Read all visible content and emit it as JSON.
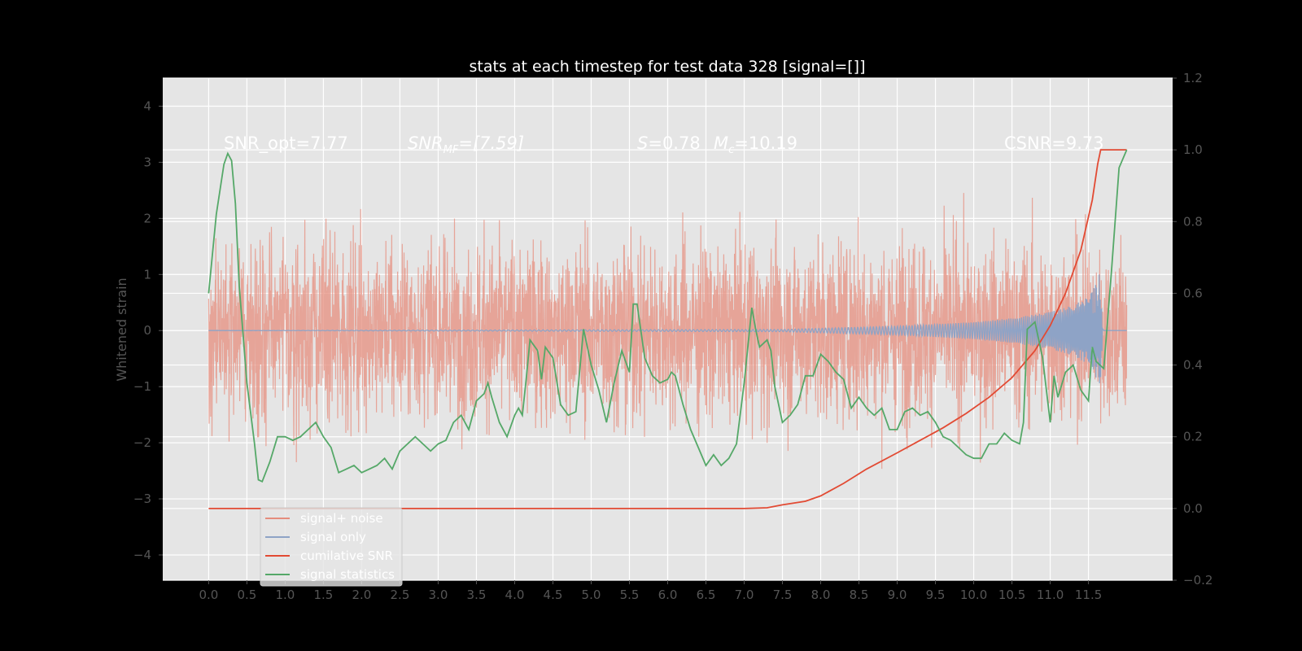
{
  "chart_data": {
    "type": "line",
    "title": "stats at each timestep for test data 328 [signal=[]]",
    "ylabel": "Whitened strain",
    "xlabel": "",
    "xlim": [
      -0.6,
      12.6
    ],
    "ylim": [
      -4.45,
      4.5
    ],
    "y2lim": [
      -0.2,
      1.2
    ],
    "x_ticks": [
      "0.0",
      "0.5",
      "1.0",
      "1.5",
      "2.0",
      "2.5",
      "3.0",
      "3.5",
      "4.0",
      "4.5",
      "5.0",
      "5.5",
      "6.0",
      "6.5",
      "7.0",
      "7.5",
      "8.0",
      "8.5",
      "9.0",
      "9.5",
      "10.0",
      "10.5",
      "11.0",
      "11.5"
    ],
    "y_ticks": [
      "4",
      "3",
      "2",
      "1",
      "0",
      "−1",
      "−2",
      "−3",
      "−4"
    ],
    "y2_ticks": [
      "1.2",
      "1.0",
      "0.8",
      "0.6",
      "0.4",
      "0.2",
      "0.0",
      "−0.2"
    ],
    "grid": true,
    "legend_position": "lower-left",
    "annotations": {
      "snr_opt": "SNR_opt=7.77",
      "snr_mf_sym": "SNR",
      "snr_mf_sub": "MF",
      "snr_mf_val": "=[7.59]",
      "s_sym": "S",
      "s_val": "=0.78",
      "mc_sym": "M",
      "mc_sub": "c",
      "mc_val": "=10.19",
      "csnr": "CSNR=9.73"
    },
    "series": [
      {
        "name": "signal+ noise",
        "color": "#e58d7d",
        "axis": "left",
        "kind": "noise",
        "amplitude": 3.2,
        "x_range": [
          0,
          12
        ]
      },
      {
        "name": "signal only",
        "color": "#8ea3c6",
        "axis": "left",
        "kind": "chirp",
        "envelope": {
          "x": [
            0,
            7.5,
            9.0,
            10.0,
            10.5,
            11.0,
            11.3,
            11.5,
            11.6,
            11.65,
            11.7,
            12.0
          ],
          "y": [
            0,
            0.02,
            0.08,
            0.15,
            0.22,
            0.33,
            0.45,
            0.6,
            0.85,
            1.05,
            0,
            0
          ]
        }
      },
      {
        "name": "cumilative SNR",
        "color": "#e24a33",
        "axis": "right",
        "x": [
          0,
          7.0,
          7.3,
          7.5,
          7.8,
          8.0,
          8.3,
          8.6,
          9.0,
          9.3,
          9.6,
          9.9,
          10.2,
          10.5,
          10.8,
          11.0,
          11.2,
          11.4,
          11.55,
          11.62,
          11.66,
          12.0
        ],
        "y": [
          0,
          0,
          0.002,
          0.01,
          0.02,
          0.035,
          0.07,
          0.11,
          0.155,
          0.19,
          0.225,
          0.265,
          0.31,
          0.365,
          0.44,
          0.51,
          0.6,
          0.72,
          0.86,
          0.96,
          1.0,
          1.0
        ]
      },
      {
        "name": "signal statistics",
        "color": "#55a868",
        "axis": "right",
        "x": [
          0,
          0.1,
          0.2,
          0.25,
          0.3,
          0.35,
          0.4,
          0.5,
          0.6,
          0.65,
          0.7,
          0.8,
          0.9,
          1.0,
          1.1,
          1.2,
          1.3,
          1.4,
          1.5,
          1.6,
          1.7,
          1.8,
          1.9,
          2.0,
          2.1,
          2.2,
          2.3,
          2.4,
          2.5,
          2.6,
          2.7,
          2.8,
          2.9,
          3.0,
          3.1,
          3.2,
          3.3,
          3.4,
          3.5,
          3.6,
          3.65,
          3.7,
          3.8,
          3.9,
          4.0,
          4.05,
          4.1,
          4.15,
          4.2,
          4.3,
          4.35,
          4.4,
          4.5,
          4.6,
          4.7,
          4.8,
          4.9,
          5.0,
          5.1,
          5.2,
          5.3,
          5.4,
          5.5,
          5.55,
          5.6,
          5.7,
          5.8,
          5.9,
          6.0,
          6.05,
          6.1,
          6.2,
          6.3,
          6.4,
          6.5,
          6.6,
          6.7,
          6.8,
          6.9,
          7.0,
          7.1,
          7.15,
          7.2,
          7.3,
          7.35,
          7.4,
          7.5,
          7.6,
          7.7,
          7.8,
          7.9,
          8.0,
          8.1,
          8.2,
          8.3,
          8.4,
          8.5,
          8.6,
          8.7,
          8.8,
          8.9,
          9.0,
          9.1,
          9.2,
          9.3,
          9.4,
          9.5,
          9.6,
          9.7,
          9.8,
          9.9,
          10.0,
          10.1,
          10.2,
          10.3,
          10.4,
          10.5,
          10.6,
          10.65,
          10.7,
          10.8,
          10.9,
          11.0,
          11.05,
          11.1,
          11.2,
          11.3,
          11.4,
          11.5,
          11.55,
          11.6,
          11.7,
          11.8,
          11.9,
          12.0
        ],
        "y": [
          0.6,
          0.82,
          0.96,
          0.99,
          0.97,
          0.85,
          0.62,
          0.35,
          0.18,
          0.08,
          0.075,
          0.13,
          0.2,
          0.2,
          0.19,
          0.2,
          0.22,
          0.24,
          0.2,
          0.17,
          0.1,
          0.11,
          0.12,
          0.1,
          0.11,
          0.12,
          0.14,
          0.11,
          0.16,
          0.18,
          0.2,
          0.18,
          0.16,
          0.18,
          0.19,
          0.24,
          0.26,
          0.22,
          0.3,
          0.32,
          0.35,
          0.31,
          0.24,
          0.2,
          0.26,
          0.28,
          0.26,
          0.36,
          0.47,
          0.44,
          0.36,
          0.45,
          0.42,
          0.29,
          0.26,
          0.27,
          0.5,
          0.4,
          0.33,
          0.24,
          0.35,
          0.44,
          0.38,
          0.57,
          0.57,
          0.42,
          0.37,
          0.35,
          0.36,
          0.38,
          0.37,
          0.29,
          0.22,
          0.17,
          0.12,
          0.15,
          0.12,
          0.14,
          0.18,
          0.35,
          0.56,
          0.5,
          0.45,
          0.47,
          0.44,
          0.34,
          0.24,
          0.26,
          0.29,
          0.37,
          0.37,
          0.43,
          0.41,
          0.38,
          0.36,
          0.28,
          0.31,
          0.28,
          0.26,
          0.28,
          0.22,
          0.22,
          0.27,
          0.28,
          0.26,
          0.27,
          0.24,
          0.2,
          0.19,
          0.17,
          0.15,
          0.14,
          0.14,
          0.18,
          0.18,
          0.21,
          0.19,
          0.18,
          0.24,
          0.5,
          0.52,
          0.42,
          0.24,
          0.37,
          0.31,
          0.38,
          0.4,
          0.33,
          0.3,
          0.45,
          0.41,
          0.39,
          0.66,
          0.95,
          1.0
        ]
      }
    ]
  }
}
